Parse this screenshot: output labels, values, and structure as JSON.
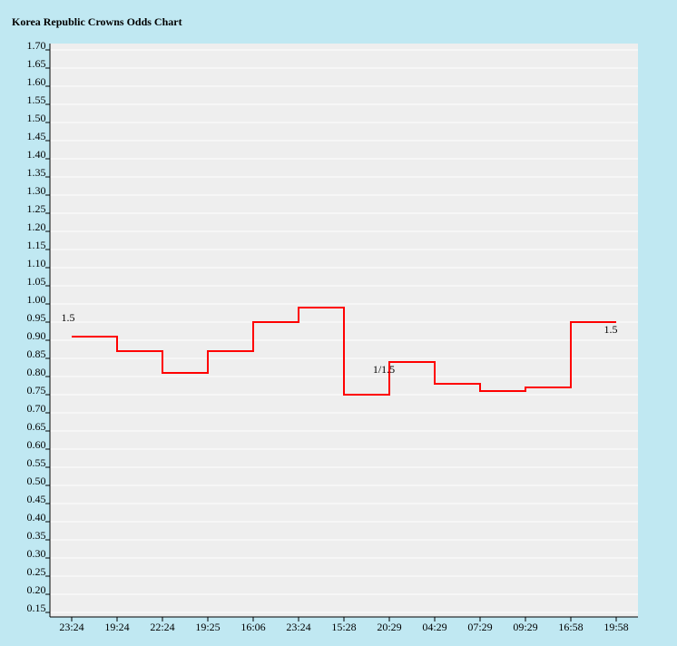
{
  "chart_data": {
    "type": "step-line",
    "title": "Korea Republic Crowns Odds Chart",
    "categories": [
      "23:24",
      "19:24",
      "22:24",
      "19:25",
      "16:06",
      "23:24",
      "15:28",
      "20:29",
      "04:29",
      "07:29",
      "09:29",
      "16:58",
      "19:58"
    ],
    "series": [
      {
        "color": "#ff0000",
        "values": [
          0.91,
          0.87,
          0.81,
          0.87,
          0.95,
          0.99,
          0.75,
          0.84,
          0.78,
          0.76,
          0.77,
          0.95,
          0.95
        ],
        "handicap_labels": [
          "1.5",
          null,
          null,
          null,
          null,
          null,
          null,
          "1/1.5",
          null,
          null,
          null,
          null,
          "1.5"
        ]
      }
    ],
    "ylim": [
      0.15,
      1.7
    ],
    "yticks": [
      {
        "value": 0.15,
        "label": "0.15"
      },
      {
        "value": 0.2,
        "label": "0.20"
      },
      {
        "value": 0.25,
        "label": "0.25"
      },
      {
        "value": 0.3,
        "label": "0.30"
      },
      {
        "value": 0.35,
        "label": "0.35"
      },
      {
        "value": 0.4,
        "label": "0.40"
      },
      {
        "value": 0.45,
        "label": "0.45"
      },
      {
        "value": 0.5,
        "label": "0.50"
      },
      {
        "value": 0.55,
        "label": "0.55"
      },
      {
        "value": 0.6,
        "label": "0.60"
      },
      {
        "value": 0.65,
        "label": "0.65"
      },
      {
        "value": 0.7,
        "label": "0.70"
      },
      {
        "value": 0.75,
        "label": "0.75"
      },
      {
        "value": 0.8,
        "label": "0.80"
      },
      {
        "value": 0.85,
        "label": "0.85"
      },
      {
        "value": 0.9,
        "label": "0.90"
      },
      {
        "value": 0.95,
        "label": "0.95"
      },
      {
        "value": 1.0,
        "label": "1.00"
      },
      {
        "value": 1.05,
        "label": "1.05"
      },
      {
        "value": 1.1,
        "label": "1.10"
      },
      {
        "value": 1.15,
        "label": "1.15"
      },
      {
        "value": 1.2,
        "label": "1.20"
      },
      {
        "value": 1.25,
        "label": "1.25"
      },
      {
        "value": 1.3,
        "label": "1.30"
      },
      {
        "value": 1.35,
        "label": "1.35"
      },
      {
        "value": 1.4,
        "label": "1.40"
      },
      {
        "value": 1.45,
        "label": "1.45"
      },
      {
        "value": 1.5,
        "label": "1.50"
      },
      {
        "value": 1.55,
        "label": "1.55"
      },
      {
        "value": 1.6,
        "label": "1.60"
      },
      {
        "value": 1.65,
        "label": "1.65"
      },
      {
        "value": 1.7,
        "label": "1.70"
      }
    ],
    "grid": true
  }
}
